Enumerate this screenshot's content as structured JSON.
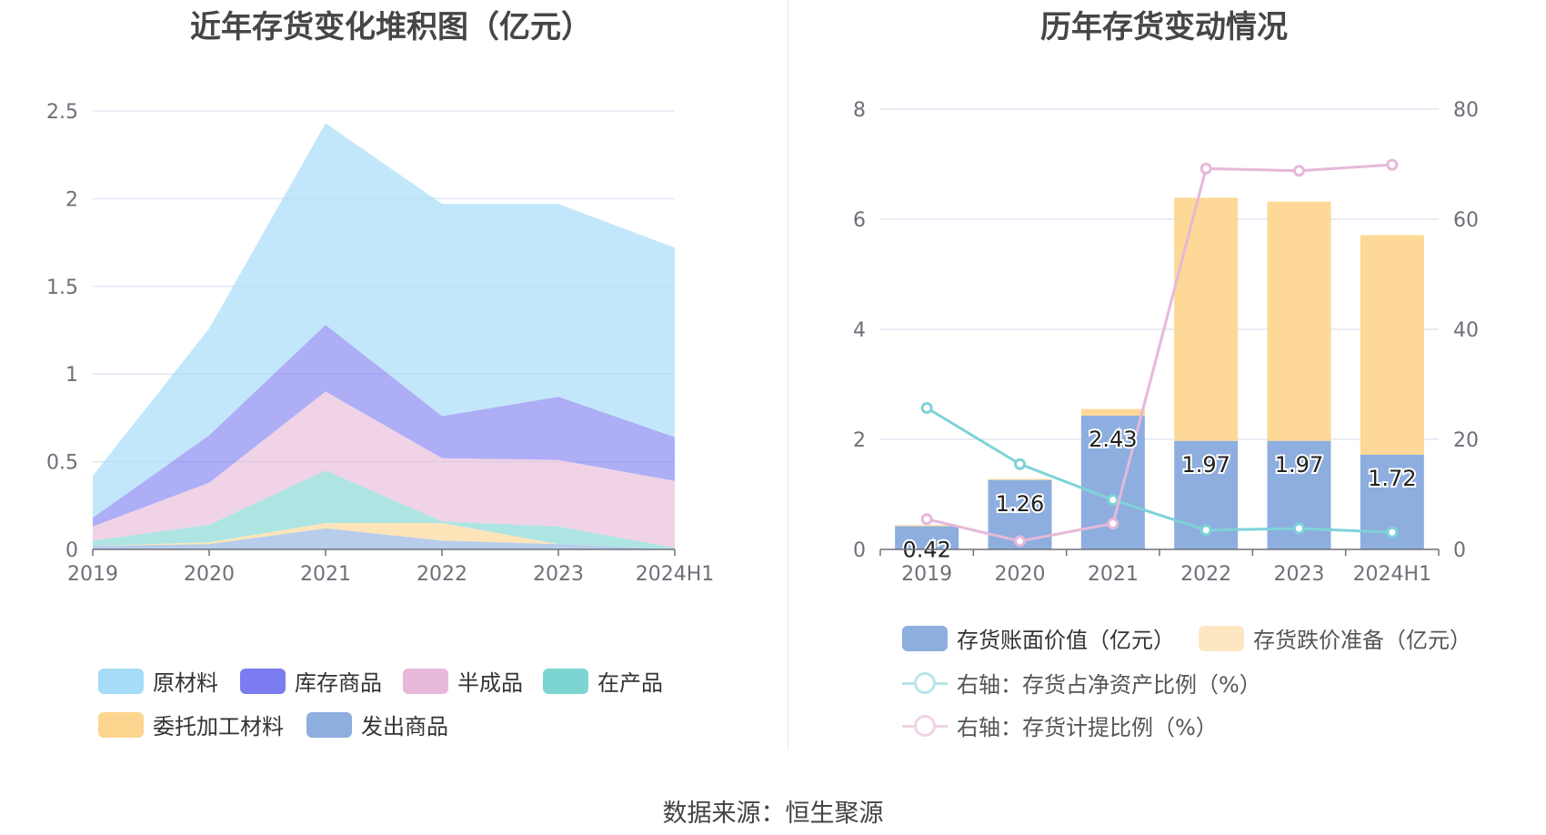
{
  "left_title": "近年存货变化堆积图（亿元）",
  "right_title": "历年存货变动情况",
  "source": "数据来源：恒生聚源",
  "colors": {
    "raw": "#a6dcf7",
    "inventory_goods": "#7b7cf0",
    "semi": "#e7b8d9",
    "wip": "#7dd5d2",
    "consigned": "#fcd58e",
    "shipped": "#8daedf",
    "book_value": "#8daedf",
    "provision": "#fdd896",
    "ratio_net_assets": "#7ed3d8",
    "ratio_provision": "#e7b8d9"
  },
  "chart_data": [
    {
      "type": "area",
      "title": "近年存货变化堆积图（亿元）",
      "categories": [
        "2019",
        "2020",
        "2021",
        "2022",
        "2023",
        "2024H1"
      ],
      "stacked": true,
      "ylim": [
        0,
        2.5
      ],
      "yticks": [
        "0",
        "0.5",
        "1",
        "1.5",
        "2",
        "2.5"
      ],
      "series": [
        {
          "name": "发出商品",
          "color_key": "shipped",
          "values": [
            0.02,
            0.03,
            0.12,
            0.05,
            0.03,
            0.0
          ]
        },
        {
          "name": "委托加工材料",
          "color_key": "consigned",
          "values": [
            0.0,
            0.01,
            0.03,
            0.1,
            0.0,
            0.0
          ]
        },
        {
          "name": "在产品",
          "color_key": "wip",
          "values": [
            0.03,
            0.1,
            0.3,
            0.01,
            0.1,
            0.01
          ]
        },
        {
          "name": "半成品",
          "color_key": "semi",
          "values": [
            0.08,
            0.24,
            0.45,
            0.36,
            0.38,
            0.38
          ]
        },
        {
          "name": "库存商品",
          "color_key": "inventory_goods",
          "values": [
            0.05,
            0.27,
            0.38,
            0.24,
            0.36,
            0.25
          ]
        },
        {
          "name": "原材料",
          "color_key": "raw",
          "values": [
            0.24,
            0.61,
            1.15,
            1.21,
            1.1,
            1.08
          ]
        }
      ],
      "legend": [
        "原材料",
        "库存商品",
        "半成品",
        "在产品",
        "委托加工材料",
        "发出商品"
      ],
      "legend_position": "bottom"
    },
    {
      "type": "bar",
      "title": "历年存货变动情况",
      "categories": [
        "2019",
        "2020",
        "2021",
        "2022",
        "2023",
        "2024H1"
      ],
      "ylim_left": [
        0,
        8
      ],
      "yticks_left": [
        "0",
        "2",
        "4",
        "6",
        "8"
      ],
      "ylim_right": [
        0,
        80
      ],
      "yticks_right": [
        "0",
        "20",
        "40",
        "60",
        "80"
      ],
      "bars": [
        {
          "name": "存货账面价值（亿元）",
          "color_key": "book_value",
          "values": [
            0.42,
            1.26,
            2.43,
            1.97,
            1.97,
            1.72
          ],
          "labels": [
            "0.42",
            "1.26",
            "2.43",
            "1.97",
            "1.97",
            "1.72"
          ]
        },
        {
          "name": "存货跌价准备（亿元）",
          "color_key": "provision",
          "values": [
            0.02,
            0.02,
            0.12,
            4.42,
            4.35,
            3.99
          ]
        }
      ],
      "lines": [
        {
          "name": "右轴：存货占净资产比例（%）",
          "color_key": "ratio_net_assets",
          "axis": "right",
          "values": [
            25.7,
            15.5,
            9.0,
            3.5,
            3.8,
            3.1
          ]
        },
        {
          "name": "右轴：存货计提比例（%）",
          "color_key": "ratio_provision",
          "axis": "right",
          "values": [
            5.5,
            1.5,
            4.7,
            69.2,
            68.8,
            69.9
          ]
        }
      ],
      "legend_position": "bottom"
    }
  ]
}
